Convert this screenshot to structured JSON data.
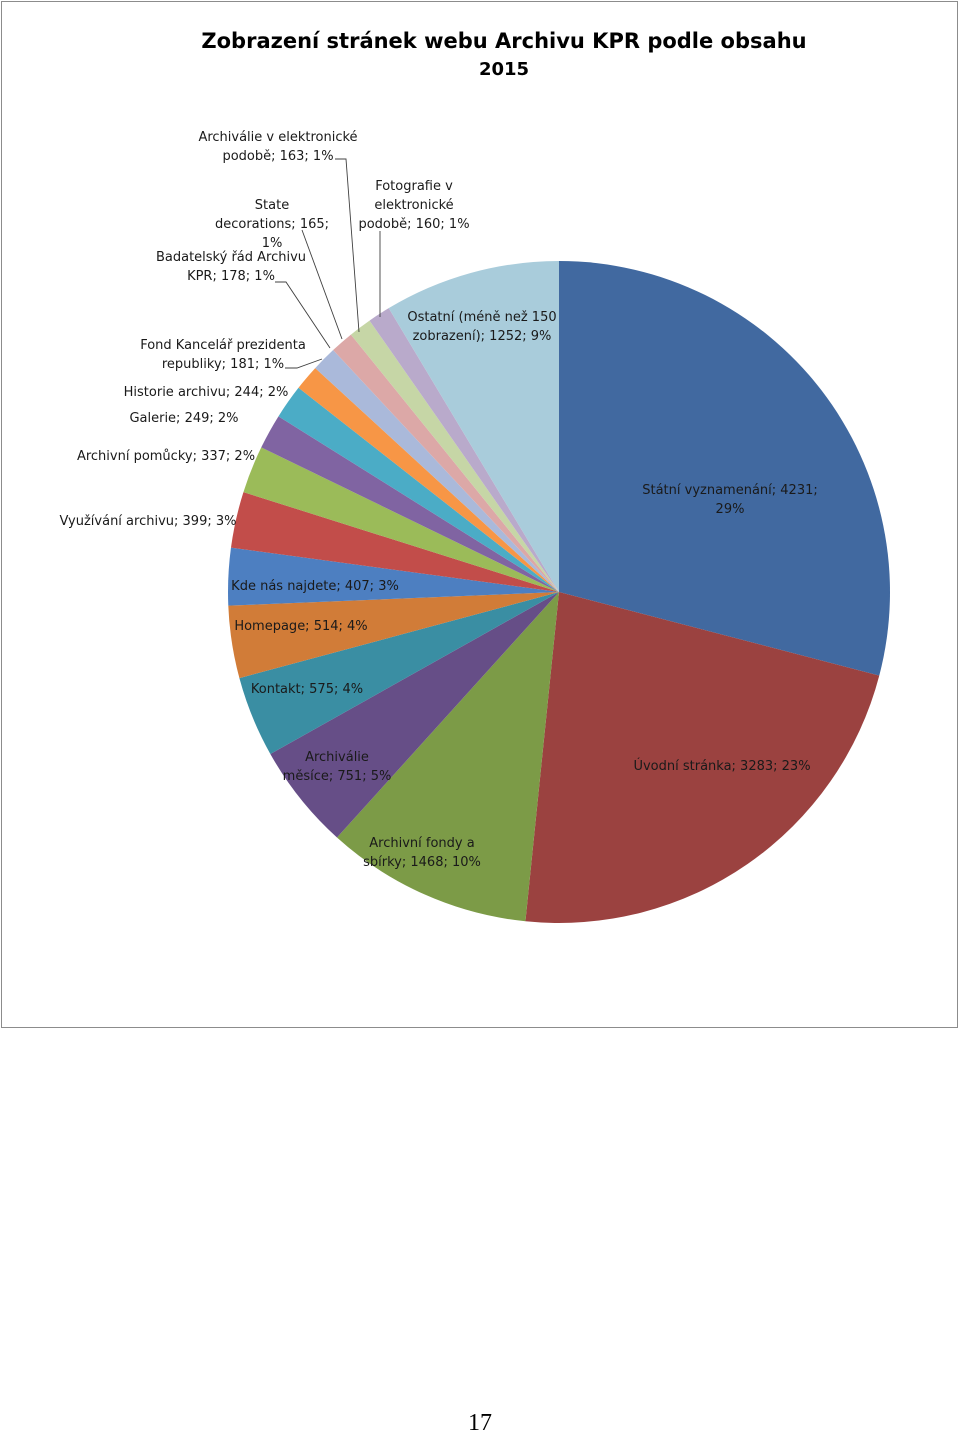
{
  "page": {
    "number": "17"
  },
  "chart_data": {
    "type": "pie",
    "title": "Zobrazení stránek webu Archivu KPR podle obsahu",
    "subtitle": "2015",
    "legend": "none",
    "start_angle_deg": 0,
    "direction": "clockwise",
    "slices": [
      {
        "name": "Státní vyznamenání",
        "value": 4231,
        "percent": "29%",
        "label": [
          "Státní vyznamenání; 4231;",
          "29%"
        ],
        "color": "#4169a0"
      },
      {
        "name": "Úvodní stránka",
        "value": 3283,
        "percent": "23%",
        "label": [
          "Úvodní stránka; 3283; 23%"
        ],
        "color": "#9b4240"
      },
      {
        "name": "Archivní fondy a sbírky",
        "value": 1468,
        "percent": "10%",
        "label": [
          "Archivní fondy a",
          "sbírky; 1468; 10%"
        ],
        "color": "#7c9b47"
      },
      {
        "name": "Archiválie měsíce",
        "value": 751,
        "percent": "5%",
        "label": [
          "Archiválie",
          "měsíce; 751; 5%"
        ],
        "color": "#664e87"
      },
      {
        "name": "Kontakt",
        "value": 575,
        "percent": "4%",
        "label": [
          "Kontakt; 575; 4%"
        ],
        "color": "#3a8ea3"
      },
      {
        "name": "Homepage",
        "value": 514,
        "percent": "4%",
        "label": [
          "Homepage; 514; 4%"
        ],
        "color": "#d17c38"
      },
      {
        "name": "Kde nás najdete",
        "value": 407,
        "percent": "3%",
        "label": [
          "Kde nás najdete; 407; 3%"
        ],
        "color": "#4d7fc1"
      },
      {
        "name": "Využívání archivu",
        "value": 399,
        "percent": "3%",
        "label": [
          "Využívání archivu; 399; 3%"
        ],
        "color": "#c24d4a"
      },
      {
        "name": "Archivní pomůcky",
        "value": 337,
        "percent": "2%",
        "label": [
          "Archivní pomůcky; 337; 2%"
        ],
        "color": "#9bbb59"
      },
      {
        "name": "Galerie",
        "value": 249,
        "percent": "2%",
        "label": [
          "Galerie; 249; 2%"
        ],
        "color": "#8064a2"
      },
      {
        "name": "Historie archivu",
        "value": 244,
        "percent": "2%",
        "label": [
          "Historie archivu; 244; 2%"
        ],
        "color": "#4bacc6"
      },
      {
        "name": "Fond Kancelář prezidenta republiky",
        "value": 181,
        "percent": "1%",
        "label": [
          "Fond Kancelář prezidenta",
          "republiky; 181; 1%"
        ],
        "color": "#f79646"
      },
      {
        "name": "Badatelský řád Archivu KPR",
        "value": 178,
        "percent": "1%",
        "label": [
          "Badatelský řád Archivu",
          "KPR; 178; 1%"
        ],
        "color": "#aab9da"
      },
      {
        "name": "State decorations",
        "value": 165,
        "percent": "1%",
        "label": [
          "State",
          "decorations; 165;",
          "1%"
        ],
        "color": "#dca8a7"
      },
      {
        "name": "Archiválie v elektronické podobě",
        "value": 163,
        "percent": "1%",
        "label": [
          "Archiválie v elektronické",
          "podobě; 163; 1%"
        ],
        "color": "#c6d6a6"
      },
      {
        "name": "Fotografie v elektronické podobě",
        "value": 160,
        "percent": "1%",
        "label": [
          "Fotografie v",
          "elektronické",
          "podobě; 160; 1%"
        ],
        "color": "#b9aacb"
      },
      {
        "name": "Ostatní (méně než 150 zobrazení)",
        "value": 1252,
        "percent": "9%",
        "label": [
          "Ostatní (méně než 150",
          "zobrazení); 1252; 9%"
        ],
        "color": "#a9ccdb"
      }
    ]
  }
}
